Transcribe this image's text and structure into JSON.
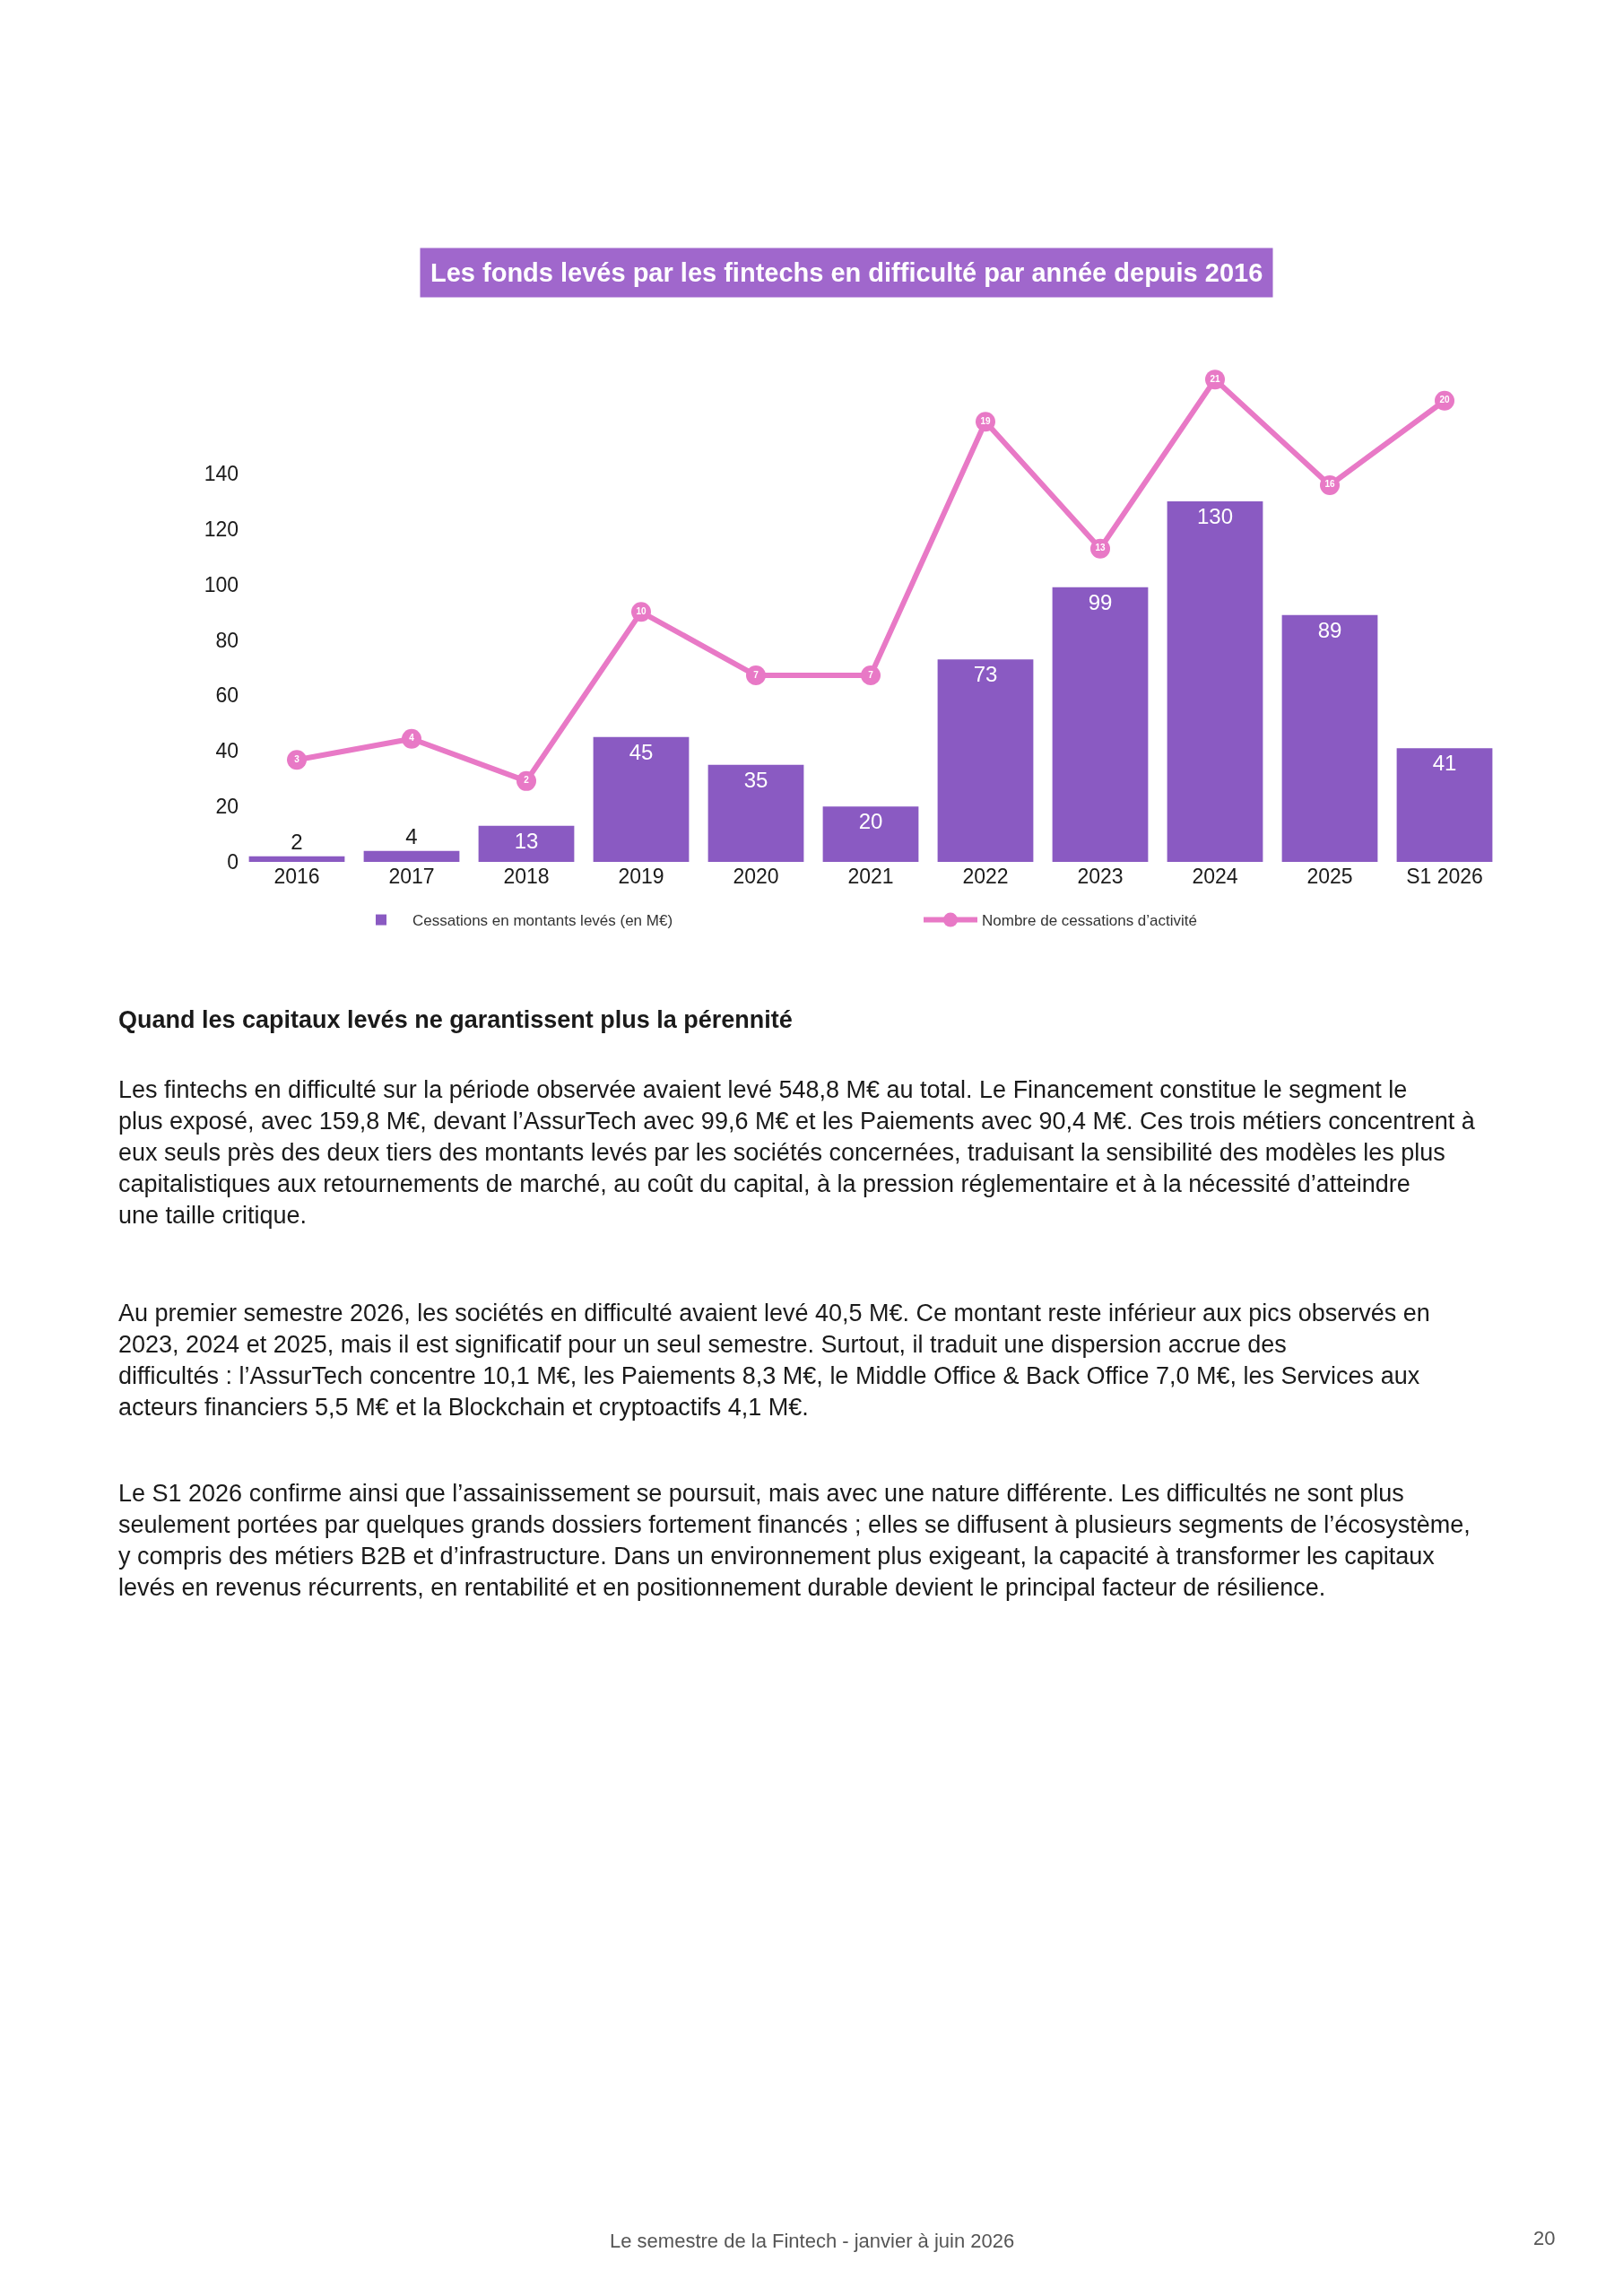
{
  "chart_data": {
    "type": "bar",
    "title": "Les fonds levés par les fintechs en difficulté par année depuis 2016",
    "categories": [
      "2016",
      "2017",
      "2018",
      "2019",
      "2020",
      "2021",
      "2022",
      "2023",
      "2024",
      "2025",
      "S1 2026"
    ],
    "series": [
      {
        "name": "Cessations en montants levés (en M€)",
        "color": "#8a5ac2",
        "values": [
          2,
          4,
          13,
          45,
          35,
          20,
          73,
          99,
          130,
          89,
          41
        ]
      },
      {
        "name": "Nombre de cessations d’activité",
        "type": "line",
        "axis": "y2",
        "color": "#e879c6",
        "values": [
          3,
          4,
          2,
          10,
          7,
          7,
          19,
          13,
          21,
          16,
          20
        ]
      }
    ],
    "ylim": [
      0,
      140
    ],
    "yticks": [
      0,
      20,
      40,
      60,
      80,
      100,
      120,
      140
    ],
    "data_labels": true,
    "marker": "circle",
    "legend": "bottom",
    "grid": false,
    "annotations": [
      "Quand les capitaux levés ne garantissent plus la pérennité",
      "Les fintechs en difficulté sur la période observée avaient levé 548,8 M€ au total. Le Financement constitue le segment le plus exposé, avec 159,8 M€, devant l’AssurTech avec 99,6 M€ et les Paiements avec 90,4 M€. Ces trois métiers concentrent à eux seuls près des deux tiers des montants levés par les sociétés concernées, traduisant la sensibilité des modèles les plus capitalistiques aux retournements de marché, au coût du capital, à la pression réglementaire et à la nécessité d’atteindre une taille critique.",
      "Au premier semestre 2026, les sociétés en difficulté avaient levé 40,5 M€. Ce montant reste inférieur aux pics observés en 2023, 2024 et 2025, mais il est significatif pour un seul semestre. Surtout, il traduit une dispersion accrue des difficultés : l’AssurTech concentre 10,1 M€, les Paiements 8,3 M€, le Middle Office & Back Office 7,0 M€, les Services aux acteurs financiers 5,5 M€ et la Blockchain et cryptoactifs 4,1 M€.",
      "Le S1 2026 confirme ainsi que l’assainissement se poursuit, mais avec une nature différente. Les difficultés ne sont plus seulement portées par quelques grands dossiers fortement financés ; elles se diffusent à plusieurs segments de l’écosystème, y compris des métiers B2B et d’infrastructure. Dans un environnement plus exigeant, la capacité à transformer les capitaux levés en revenus récurrents, en rentabilité et en positionnement durable devient le principal facteur de résilience.",
      "Le semestre de la Fintech - janvier à juin 2026",
      "20"
    ]
  }
}
